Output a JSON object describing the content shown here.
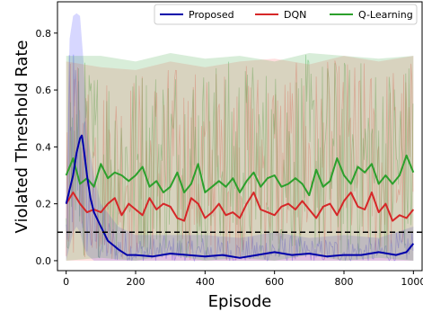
{
  "chart_data": {
    "type": "line",
    "title": "",
    "xlabel": "Episode",
    "ylabel": "Violated Threshold Rate",
    "xlim": [
      -25,
      1025
    ],
    "ylim": [
      -0.035,
      0.91
    ],
    "xticks": [
      0,
      200,
      400,
      600,
      800,
      1000
    ],
    "xtick_labels": [
      "0",
      "200",
      "400",
      "600",
      "800",
      "1000"
    ],
    "yticks": [
      0.0,
      0.2,
      0.4,
      0.6,
      0.8
    ],
    "ytick_labels": [
      "0.0",
      "0.2",
      "0.4",
      "0.6",
      "0.8"
    ],
    "grid": false,
    "legend_position": "top-right",
    "threshold": {
      "y": 0.1,
      "style": "dashed",
      "color": "#000000"
    },
    "raw_bands": [
      {
        "series": "Proposed",
        "color": "#4b4bff",
        "x": [
          0,
          10,
          20,
          30,
          40,
          50,
          60,
          80,
          100,
          150,
          200,
          300,
          400,
          500,
          600,
          700,
          800,
          900,
          1000
        ],
        "low": [
          0.0,
          0.05,
          0.1,
          0.12,
          0.1,
          0.05,
          0.02,
          0.0,
          0.0,
          0.0,
          0.0,
          0.0,
          0.0,
          0.0,
          0.0,
          0.0,
          0.0,
          0.0,
          0.0
        ],
        "high": [
          0.25,
          0.78,
          0.86,
          0.87,
          0.86,
          0.7,
          0.45,
          0.3,
          0.2,
          0.12,
          0.09,
          0.09,
          0.09,
          0.08,
          0.1,
          0.08,
          0.09,
          0.08,
          0.12
        ]
      },
      {
        "series": "DQN",
        "color": "#ff6b6b",
        "x": [
          0,
          100,
          200,
          300,
          400,
          500,
          600,
          700,
          800,
          900,
          1000
        ],
        "low": [
          0.0,
          0.0,
          0.0,
          0.0,
          0.0,
          0.0,
          0.0,
          0.0,
          0.0,
          0.0,
          0.0
        ],
        "high": [
          0.7,
          0.68,
          0.67,
          0.7,
          0.68,
          0.7,
          0.71,
          0.69,
          0.72,
          0.7,
          0.72
        ]
      },
      {
        "series": "Q-Learning",
        "color": "#4caf50",
        "x": [
          0,
          100,
          200,
          300,
          400,
          500,
          600,
          700,
          800,
          900,
          1000
        ],
        "low": [
          0.0,
          0.01,
          0.0,
          0.02,
          0.0,
          0.01,
          0.0,
          0.02,
          0.0,
          0.01,
          0.0
        ],
        "high": [
          0.72,
          0.72,
          0.7,
          0.73,
          0.71,
          0.72,
          0.7,
          0.73,
          0.72,
          0.71,
          0.72
        ]
      }
    ],
    "series": [
      {
        "name": "Proposed",
        "color": "#0000aa",
        "x": [
          0,
          10,
          20,
          30,
          40,
          45,
          50,
          60,
          70,
          80,
          100,
          120,
          150,
          175,
          200,
          250,
          300,
          350,
          400,
          450,
          500,
          550,
          600,
          650,
          700,
          750,
          800,
          850,
          900,
          950,
          980,
          1000
        ],
        "y": [
          0.2,
          0.25,
          0.3,
          0.38,
          0.43,
          0.44,
          0.4,
          0.3,
          0.22,
          0.17,
          0.12,
          0.07,
          0.04,
          0.02,
          0.02,
          0.015,
          0.025,
          0.02,
          0.015,
          0.02,
          0.01,
          0.02,
          0.03,
          0.02,
          0.025,
          0.015,
          0.02,
          0.02,
          0.03,
          0.02,
          0.03,
          0.06
        ]
      },
      {
        "name": "DQN",
        "color": "#d62728",
        "x": [
          0,
          20,
          40,
          60,
          80,
          100,
          120,
          140,
          160,
          180,
          200,
          220,
          240,
          260,
          280,
          300,
          320,
          340,
          360,
          380,
          400,
          420,
          440,
          460,
          480,
          500,
          520,
          540,
          560,
          580,
          600,
          620,
          640,
          660,
          680,
          700,
          720,
          740,
          760,
          780,
          800,
          820,
          840,
          860,
          880,
          900,
          920,
          940,
          960,
          980,
          1000
        ],
        "y": [
          0.2,
          0.24,
          0.2,
          0.17,
          0.18,
          0.17,
          0.2,
          0.22,
          0.16,
          0.2,
          0.18,
          0.16,
          0.22,
          0.18,
          0.2,
          0.19,
          0.15,
          0.14,
          0.22,
          0.2,
          0.15,
          0.17,
          0.2,
          0.16,
          0.17,
          0.15,
          0.2,
          0.24,
          0.18,
          0.17,
          0.16,
          0.19,
          0.2,
          0.18,
          0.21,
          0.18,
          0.15,
          0.19,
          0.2,
          0.16,
          0.21,
          0.24,
          0.19,
          0.18,
          0.24,
          0.17,
          0.2,
          0.14,
          0.16,
          0.15,
          0.18
        ]
      },
      {
        "name": "Q-Learning",
        "color": "#2ca02c",
        "x": [
          0,
          20,
          40,
          60,
          80,
          100,
          120,
          140,
          160,
          180,
          200,
          220,
          240,
          260,
          280,
          300,
          320,
          340,
          360,
          380,
          400,
          420,
          440,
          460,
          480,
          500,
          520,
          540,
          560,
          580,
          600,
          620,
          640,
          660,
          680,
          700,
          720,
          740,
          760,
          780,
          800,
          820,
          840,
          860,
          880,
          900,
          920,
          940,
          960,
          980,
          1000
        ],
        "y": [
          0.3,
          0.36,
          0.27,
          0.29,
          0.26,
          0.34,
          0.29,
          0.31,
          0.3,
          0.28,
          0.3,
          0.33,
          0.26,
          0.28,
          0.24,
          0.26,
          0.31,
          0.24,
          0.27,
          0.34,
          0.24,
          0.26,
          0.28,
          0.26,
          0.29,
          0.24,
          0.28,
          0.31,
          0.26,
          0.29,
          0.3,
          0.26,
          0.27,
          0.29,
          0.27,
          0.23,
          0.32,
          0.26,
          0.28,
          0.36,
          0.3,
          0.27,
          0.33,
          0.31,
          0.34,
          0.27,
          0.3,
          0.27,
          0.3,
          0.37,
          0.31
        ]
      }
    ]
  }
}
